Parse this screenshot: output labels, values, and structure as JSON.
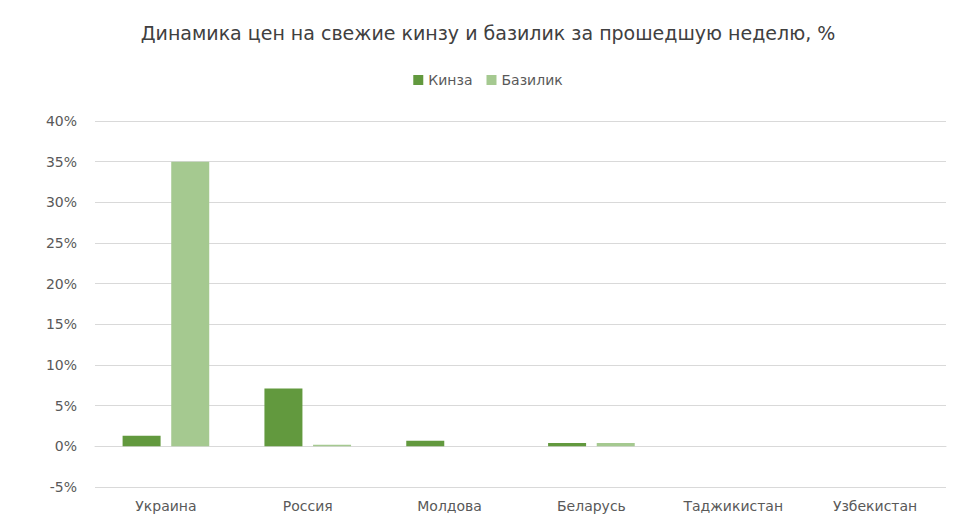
{
  "chart_data": {
    "type": "bar",
    "title": "Динамика цен на свежие кинзу и базилик за прошедшую неделю, %",
    "categories": [
      "Украина",
      "Россия",
      "Молдова",
      "Беларусь",
      "Таджикистан",
      "Узбекистан"
    ],
    "series": [
      {
        "name": "Кинза",
        "color": "#62993e",
        "values": [
          1.3,
          7.1,
          0.7,
          0.4,
          0,
          0
        ]
      },
      {
        "name": "Базилик",
        "color": "#a5c990",
        "values": [
          35,
          0.2,
          0,
          0.4,
          0,
          0
        ]
      }
    ],
    "ylim": [
      -5,
      40
    ],
    "yticks": [
      {
        "value": -5,
        "label": "-5%"
      },
      {
        "value": 0,
        "label": "0%"
      },
      {
        "value": 5,
        "label": "5%"
      },
      {
        "value": 10,
        "label": "10%"
      },
      {
        "value": 15,
        "label": "15%"
      },
      {
        "value": 20,
        "label": "20%"
      },
      {
        "value": 25,
        "label": "25%"
      },
      {
        "value": 30,
        "label": "30%"
      },
      {
        "value": 35,
        "label": "35%"
      },
      {
        "value": 40,
        "label": "40%"
      }
    ],
    "grid": true,
    "legend": "top"
  }
}
